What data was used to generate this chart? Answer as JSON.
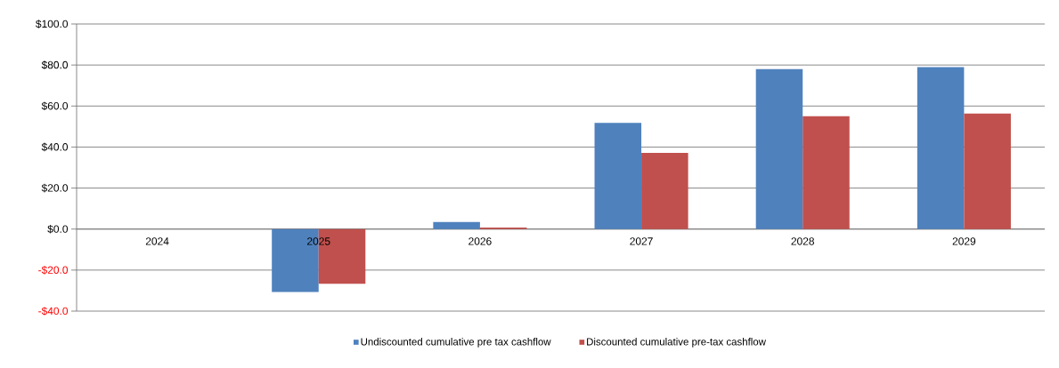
{
  "chart_data": {
    "type": "bar",
    "categories": [
      "2024",
      "2025",
      "2026",
      "2027",
      "2028",
      "2029"
    ],
    "series": [
      {
        "name": "Undiscounted cumulative pre tax cashflow",
        "color": "#4f81bd",
        "values": [
          0,
          -30.7,
          3.5,
          51.8,
          78.0,
          79.0
        ]
      },
      {
        "name": "Discounted cumulative pre-tax cashflow",
        "color": "#c0504d",
        "values": [
          0,
          -26.7,
          0.7,
          37.2,
          55.0,
          56.3
        ]
      }
    ],
    "ylim": [
      -40,
      100
    ],
    "yticks": [
      {
        "value": -40,
        "label": "-$40.0"
      },
      {
        "value": -20,
        "label": "-$20.0"
      },
      {
        "value": 0,
        "label": "$0.0"
      },
      {
        "value": 20,
        "label": "$20.0"
      },
      {
        "value": 40,
        "label": "$40.0"
      },
      {
        "value": 60,
        "label": "$60.0"
      },
      {
        "value": 80,
        "label": "$80.0"
      },
      {
        "value": 100,
        "label": "$100.0"
      }
    ],
    "grid": "y",
    "legend": "bottom"
  }
}
